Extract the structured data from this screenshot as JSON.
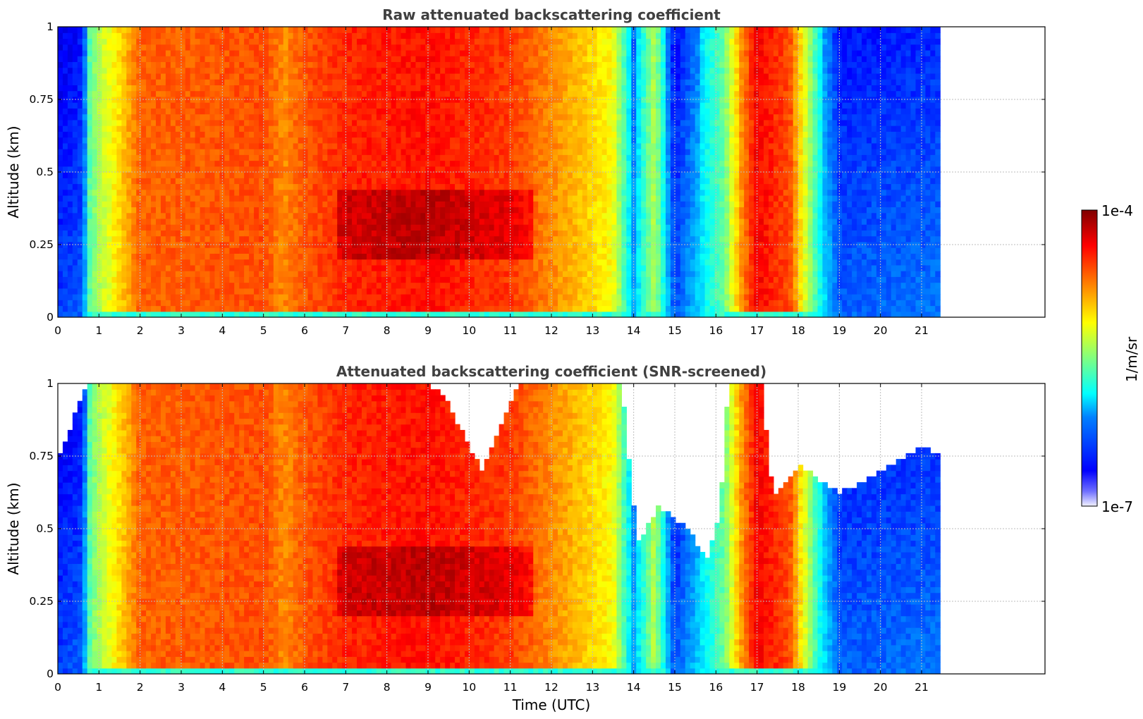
{
  "chart_data": [
    {
      "type": "heatmap",
      "title": "Raw attenuated backscattering coefficient",
      "xlabel": "",
      "ylabel": "Altitude (km)",
      "xlim": [
        0,
        24
      ],
      "ylim": [
        0,
        1
      ],
      "x_ticks": [
        "0",
        "1",
        "2",
        "3",
        "4",
        "5",
        "6",
        "7",
        "8",
        "9",
        "10",
        "11",
        "12",
        "13",
        "14",
        "15",
        "16",
        "17",
        "18",
        "19",
        "20",
        "21"
      ],
      "y_ticks": [
        "0",
        "0.25",
        "0.5",
        "0.75",
        "1"
      ],
      "data_extent_hours": [
        0,
        21.45
      ],
      "grid": true,
      "color_scale": "log jet",
      "screened": false,
      "profile": [
        {
          "t": 0.0,
          "level": 0.18
        },
        {
          "t": 0.6,
          "level": 0.22
        },
        {
          "t": 0.75,
          "level": 0.45
        },
        {
          "t": 1.0,
          "level": 0.55
        },
        {
          "t": 1.5,
          "level": 0.66
        },
        {
          "t": 2.0,
          "level": 0.78
        },
        {
          "t": 5.0,
          "level": 0.8
        },
        {
          "t": 5.5,
          "level": 0.74
        },
        {
          "t": 6.0,
          "level": 0.79
        },
        {
          "t": 7.0,
          "level": 0.84
        },
        {
          "t": 9.0,
          "level": 0.86
        },
        {
          "t": 11.0,
          "level": 0.82
        },
        {
          "t": 12.5,
          "level": 0.7
        },
        {
          "t": 13.5,
          "level": 0.62
        },
        {
          "t": 14.0,
          "level": 0.3
        },
        {
          "t": 14.5,
          "level": 0.55
        },
        {
          "t": 15.0,
          "level": 0.2
        },
        {
          "t": 16.2,
          "level": 0.48
        },
        {
          "t": 16.6,
          "level": 0.72
        },
        {
          "t": 17.0,
          "level": 0.88
        },
        {
          "t": 17.8,
          "level": 0.8
        },
        {
          "t": 18.5,
          "level": 0.4
        },
        {
          "t": 19.0,
          "level": 0.22
        },
        {
          "t": 21.45,
          "level": 0.24
        }
      ]
    },
    {
      "type": "heatmap",
      "title": "Attenuated backscattering coefficient (SNR-screened)",
      "xlabel": "Time (UTC)",
      "ylabel": "Altitude (km)",
      "xlim": [
        0,
        24
      ],
      "ylim": [
        0,
        1
      ],
      "x_ticks": [
        "0",
        "1",
        "2",
        "3",
        "4",
        "5",
        "6",
        "7",
        "8",
        "9",
        "10",
        "11",
        "12",
        "13",
        "14",
        "15",
        "16",
        "17",
        "18",
        "19",
        "20",
        "21"
      ],
      "y_ticks": [
        "0",
        "0.25",
        "0.5",
        "0.75",
        "1"
      ],
      "data_extent_hours": [
        0,
        21.45
      ],
      "grid": true,
      "color_scale": "log jet",
      "screened": true,
      "screened_top_km": [
        {
          "t": 0.0,
          "top": 0.73
        },
        {
          "t": 0.7,
          "top": 1.0
        },
        {
          "t": 8.8,
          "top": 1.0
        },
        {
          "t": 9.3,
          "top": 0.98
        },
        {
          "t": 10.3,
          "top": 0.7
        },
        {
          "t": 11.2,
          "top": 1.0
        },
        {
          "t": 13.7,
          "top": 1.0
        },
        {
          "t": 14.1,
          "top": 0.45
        },
        {
          "t": 14.6,
          "top": 0.58
        },
        {
          "t": 15.3,
          "top": 0.5
        },
        {
          "t": 15.8,
          "top": 0.4
        },
        {
          "t": 16.1,
          "top": 0.55
        },
        {
          "t": 16.3,
          "top": 1.0
        },
        {
          "t": 17.1,
          "top": 1.0
        },
        {
          "t": 17.4,
          "top": 0.6
        },
        {
          "t": 18.0,
          "top": 0.72
        },
        {
          "t": 19.0,
          "top": 0.62
        },
        {
          "t": 20.0,
          "top": 0.7
        },
        {
          "t": 21.0,
          "top": 0.78
        },
        {
          "t": 21.45,
          "top": 0.76
        }
      ]
    }
  ],
  "colorbar": {
    "label": "1/m/sr",
    "max_label": "1e-4",
    "min_label": "1e-7",
    "colormap": "jet",
    "range": [
      1e-07,
      0.0001
    ]
  }
}
